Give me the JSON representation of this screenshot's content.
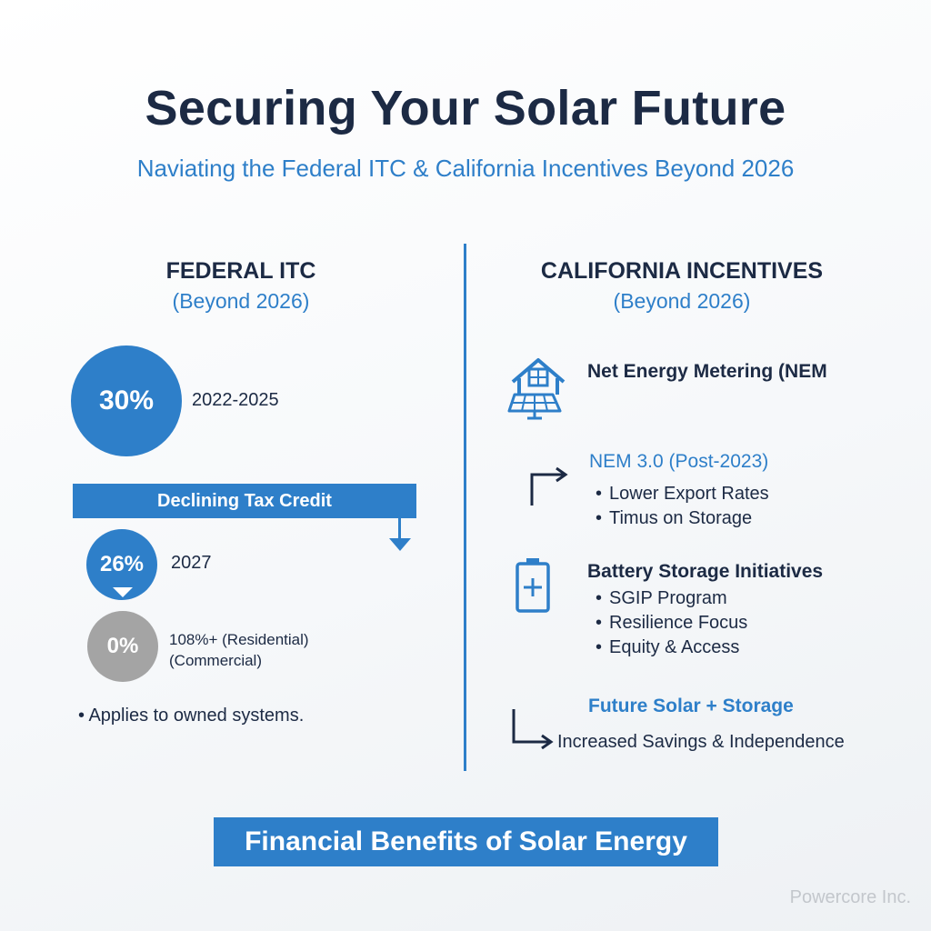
{
  "header": {
    "title": "Securing Your Solar Future",
    "subtitle": "Naviating the Federal ITC & California Incentives Beyond 2026"
  },
  "federal": {
    "title": "FEDERAL ITC",
    "subtitle": "(Beyond 2026)",
    "tiers": [
      {
        "percent": "30%",
        "label": "2022-2025",
        "color": "#2e7fc9"
      },
      {
        "percent": "26%",
        "label": "2027",
        "color": "#2e7fc9"
      },
      {
        "percent": "0%",
        "label_line1": "108%+ (Residential)",
        "label_line2": "(Commercial)",
        "color": "#a4a4a4"
      }
    ],
    "banner": "Declining Tax Credit",
    "note": "Applies to owned systems."
  },
  "california": {
    "title": "CALIFORNIA INCENTIVES",
    "subtitle": "(Beyond 2026)",
    "nem": {
      "icon": "solar-house-icon",
      "heading": "Net Energy Metering (NEM"
    },
    "nem3": {
      "icon": "turn-right-arrow-icon",
      "heading": "NEM 3.0 (Post-2023)",
      "bullets": [
        "Lower Export Rates",
        "Timus on Storage"
      ]
    },
    "battery": {
      "icon": "battery-icon",
      "heading": "Battery Storage Initiatives",
      "bullets": [
        "SGIP Program",
        "Resilience Focus",
        "Equity & Access"
      ]
    },
    "future": {
      "icon": "down-right-arrow-icon",
      "heading": "Future Solar + Storage",
      "text": "Increased Savings & Independence"
    }
  },
  "footer": {
    "banner": "Financial Benefits of Solar Energy",
    "watermark": "Powercore Inc."
  },
  "colors": {
    "accent_blue": "#2e7fc9",
    "dark_navy": "#1c2a44",
    "gray": "#a4a4a4"
  }
}
